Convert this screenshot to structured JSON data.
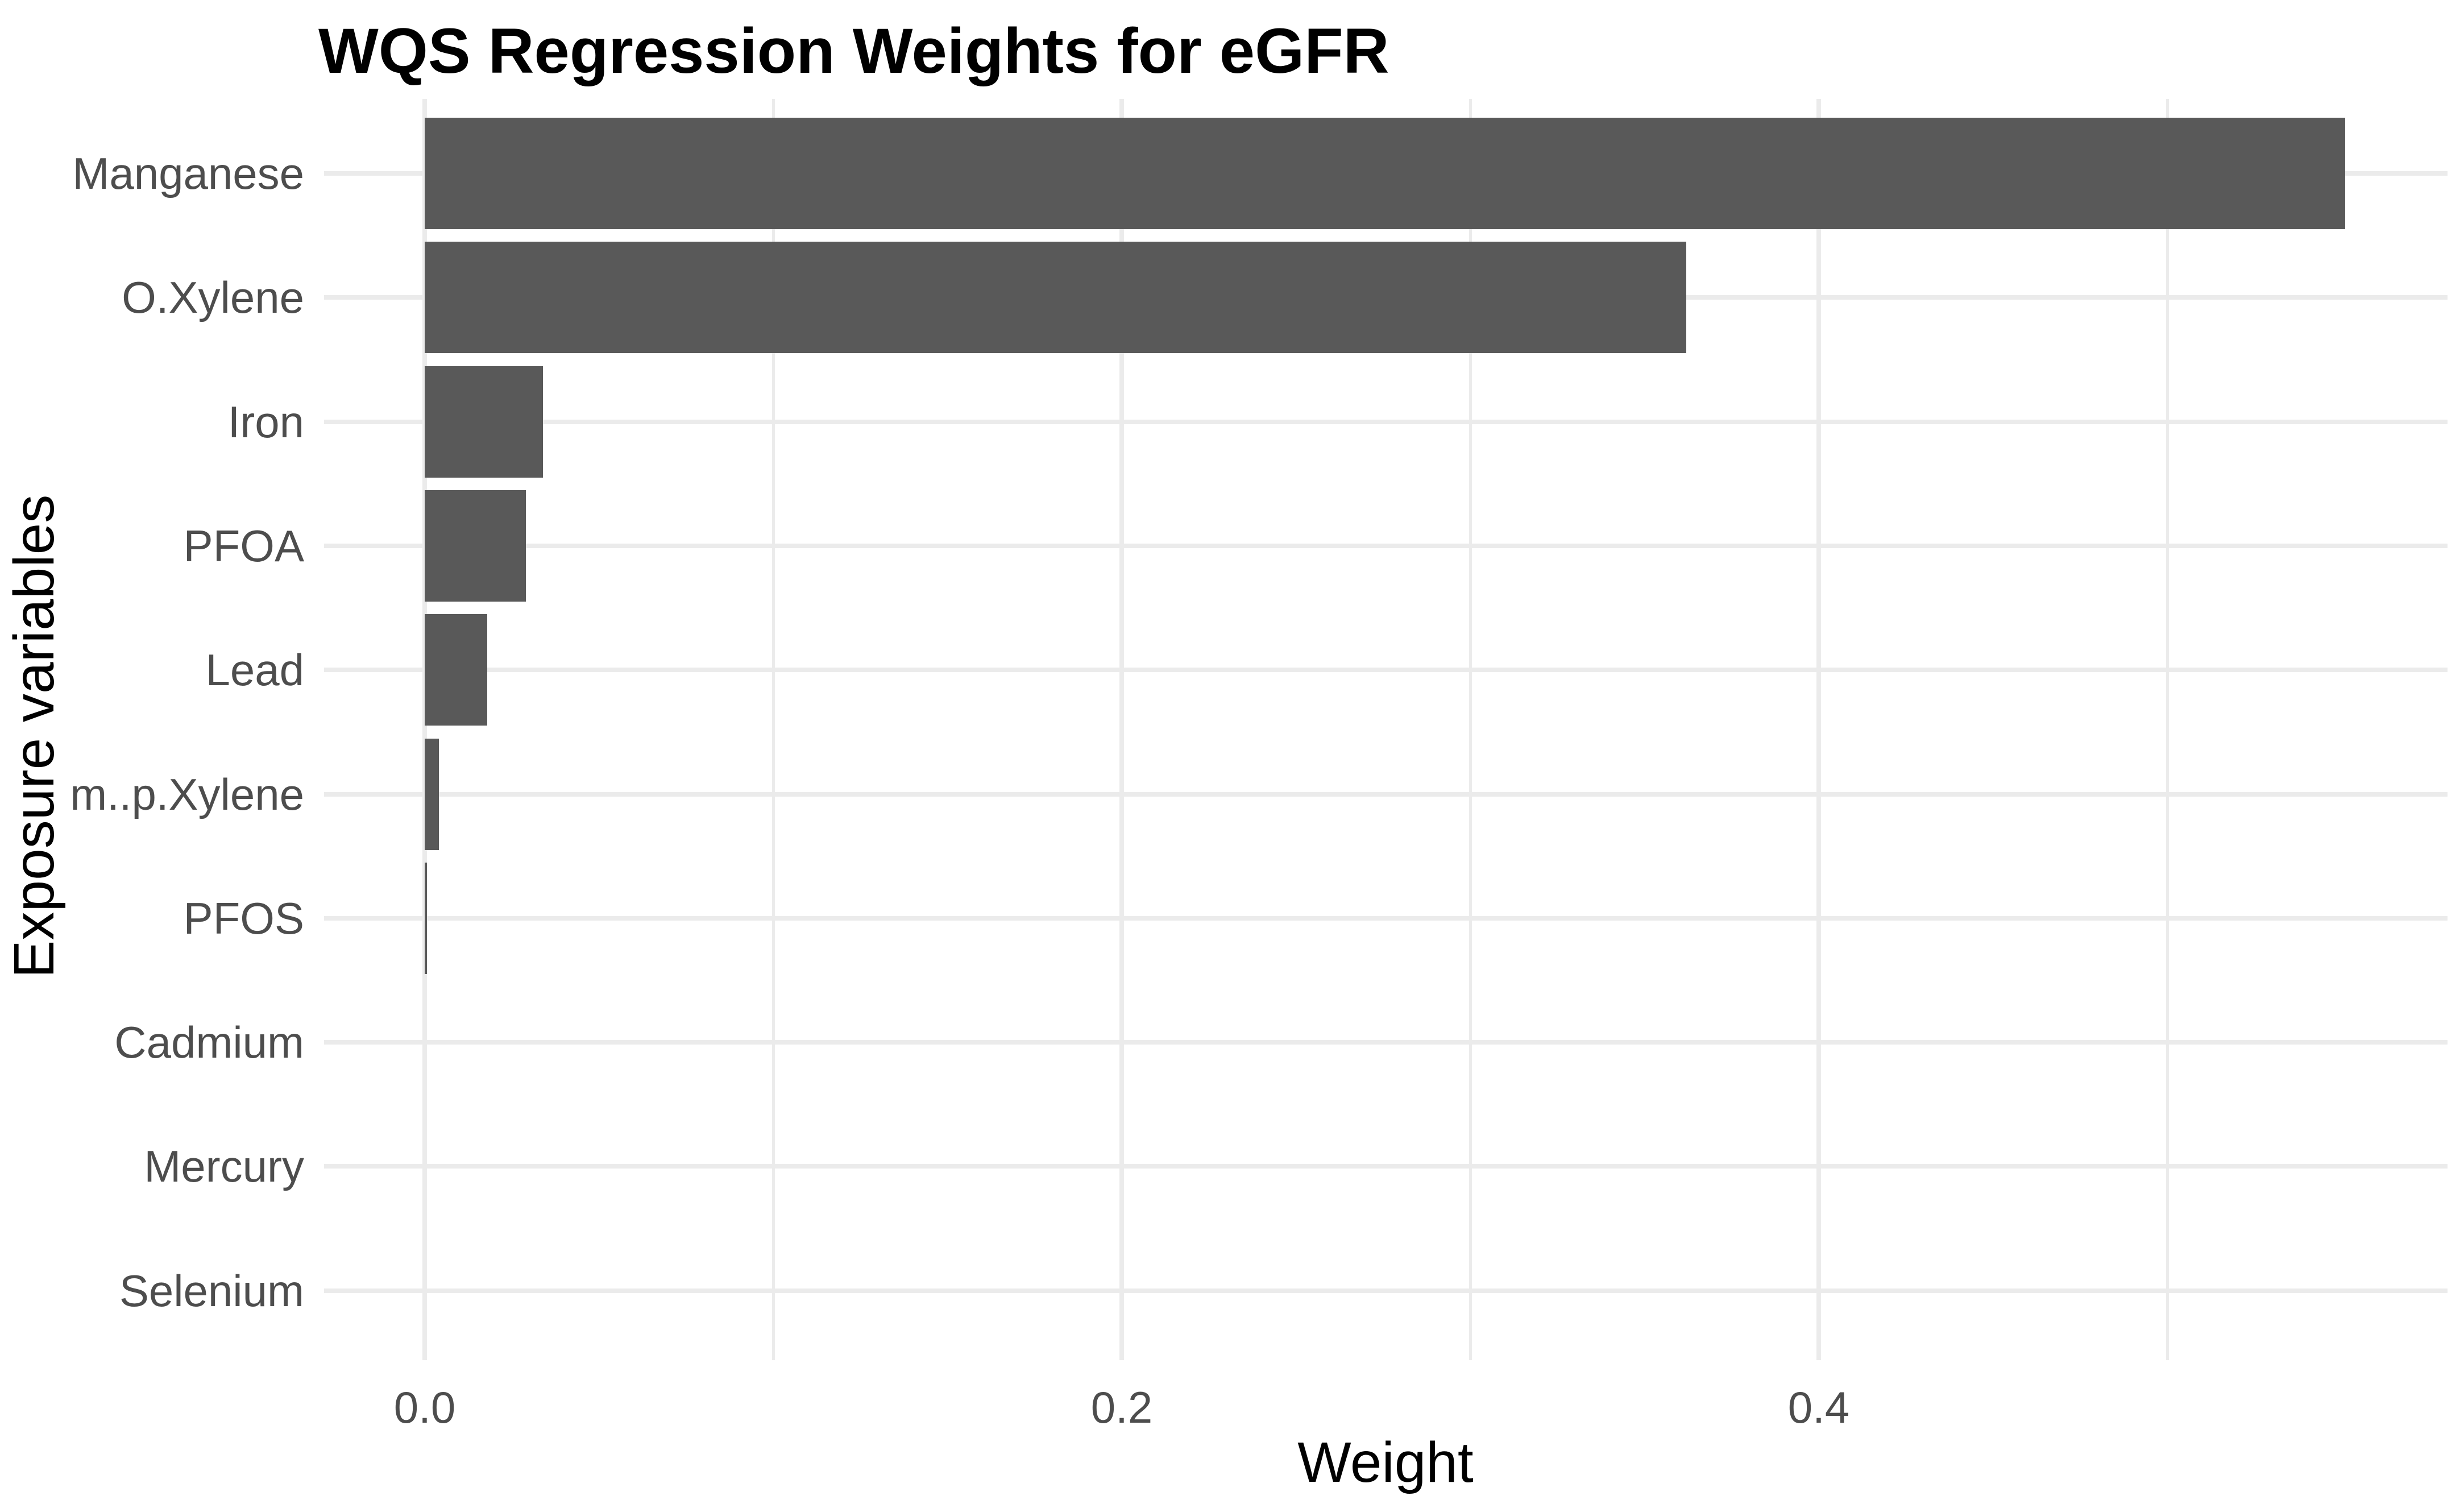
{
  "title": "WQS Regression Weights for eGFR",
  "chart_data": {
    "type": "bar",
    "orientation": "horizontal",
    "title": "WQS Regression Weights for eGFR",
    "xlabel": "Weight",
    "ylabel": "Exposure variables",
    "categories": [
      "Manganese",
      "O.Xylene",
      "Iron",
      "PFOA",
      "Lead",
      "m..p.Xylene",
      "PFOS",
      "Cadmium",
      "Mercury",
      "Selenium"
    ],
    "values": [
      0.551,
      0.362,
      0.034,
      0.029,
      0.018,
      0.004,
      0.0006,
      0,
      0,
      0
    ],
    "x_ticks": [
      {
        "label": "0.0",
        "value": 0.0
      },
      {
        "label": "0.2",
        "value": 0.2
      },
      {
        "label": "0.4",
        "value": 0.4
      }
    ],
    "x_minor_gridlines": [
      0.1,
      0.3,
      0.5
    ],
    "xlim": [
      -0.028,
      0.579
    ],
    "grid": "major-and-minor, light gray on white, no axis lines, no tick marks",
    "legend_position": "none",
    "colors": {
      "bar_fill": "#595959",
      "gridline": "#ebebeb",
      "axis_text": "#4d4d4d",
      "axis_title": "#000000",
      "title_text": "#000000",
      "background": "#ffffff"
    }
  }
}
